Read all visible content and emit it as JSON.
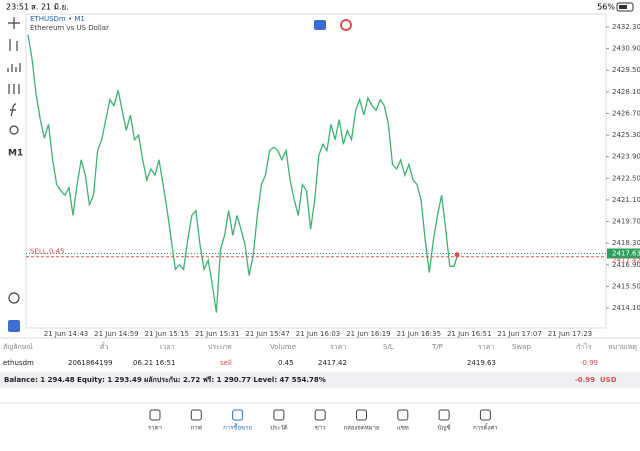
{
  "status_bar": {
    "time": "23:51",
    "date": "ส. 21 มิ.ย.",
    "battery": "56%"
  },
  "toolbar": {
    "timeframe": "M1"
  },
  "chart_data": {
    "type": "line",
    "title": "ETHUSDm • M1",
    "subtitle": "Ethereum vs US Dollar",
    "x_tick_labels": [
      "21 Jun 14:43",
      "21 Jun 14:59",
      "21 Jun 15:15",
      "21 Jun 15:31",
      "21 Jun 15:47",
      "21 Jun 16:03",
      "21 Jun 16:19",
      "21 Jun 16:35",
      "21 Jun 16:51",
      "21 Jun 17:07",
      "21 Jun 17:23"
    ],
    "series": [
      {
        "color": "#3cb371",
        "values": [
          2431.8,
          2430.2,
          2427.9,
          2426.3,
          2425.1,
          2426.0,
          2423.7,
          2422.1,
          2421.7,
          2421.4,
          2421.9,
          2420.1,
          2422.1,
          2423.7,
          2422.7,
          2420.8,
          2421.4,
          2424.3,
          2425.0,
          2426.3,
          2427.6,
          2427.2,
          2428.2,
          2426.9,
          2425.6,
          2426.6,
          2425.0,
          2425.3,
          2423.7,
          2422.4,
          2423.1,
          2422.7,
          2423.7,
          2422.1,
          2420.4,
          2418.5,
          2416.6,
          2416.9,
          2416.6,
          2418.5,
          2420.1,
          2420.4,
          2418.2,
          2416.6,
          2417.2,
          2415.6,
          2413.8,
          2417.9,
          2418.8,
          2420.4,
          2418.8,
          2420.1,
          2419.2,
          2418.2,
          2416.2,
          2417.5,
          2420.1,
          2422.1,
          2422.7,
          2424.3,
          2424.5,
          2424.3,
          2423.7,
          2424.3,
          2422.4,
          2421.1,
          2420.1,
          2422.1,
          2421.7,
          2419.2,
          2421.1,
          2424.0,
          2424.7,
          2424.3,
          2426.0,
          2425.0,
          2426.3,
          2424.7,
          2425.6,
          2425.0,
          2426.9,
          2427.6,
          2426.6,
          2427.7,
          2427.2,
          2426.9,
          2427.6,
          2427.2,
          2426.0,
          2423.4,
          2423.1,
          2423.7,
          2422.7,
          2423.4,
          2422.4,
          2422.1,
          2421.1,
          2418.5,
          2416.4,
          2418.5,
          2420.1,
          2421.4,
          2419.2,
          2416.8,
          2416.8,
          2417.6
        ]
      }
    ],
    "ylim": [
      2414.1,
      2432.3
    ],
    "yticks": [
      {
        "value": 2432.3,
        "label": "2432.30"
      },
      {
        "value": 2430.9,
        "label": "2430.90"
      },
      {
        "value": 2429.5,
        "label": "2429.50"
      },
      {
        "value": 2428.1,
        "label": "2428.10"
      },
      {
        "value": 2426.7,
        "label": "2426.70"
      },
      {
        "value": 2425.3,
        "label": "2425.30"
      },
      {
        "value": 2423.9,
        "label": "2423.90"
      },
      {
        "value": 2422.5,
        "label": "2422.50"
      },
      {
        "value": 2421.1,
        "label": "2421.10"
      },
      {
        "value": 2419.7,
        "label": "2419.70"
      },
      {
        "value": 2418.3,
        "label": "2418.30"
      },
      {
        "value": 2416.9,
        "label": "2416.90"
      },
      {
        "value": 2415.5,
        "label": "2415.50"
      },
      {
        "value": 2414.1,
        "label": "2414.10"
      }
    ],
    "price_line": {
      "value": 2417.63,
      "color": "#2e9e5e"
    },
    "order_line": {
      "text": "SELL 0.45",
      "value": 2417.42,
      "color": "#e05050"
    }
  },
  "table": {
    "headers": [
      "สัญลักษณ์",
      "ตั๋ว",
      "เวลา",
      "ประเภท",
      "Volume",
      "ราคา",
      "S/L",
      "T/P",
      "ราคา",
      "Swap",
      "กำไร",
      "หมายเหตุ"
    ],
    "row": {
      "symbol": "ethusdm",
      "ticket": "2061864199",
      "time": "06.21 16:51",
      "type": "sell",
      "volume": "0.45",
      "price": "2417.42",
      "current_price": "2419.63",
      "profit": "-0.99"
    },
    "balance": "Balance: 1 294.48 Equity: 1 293.49 ผลักประกัน: 2.72 ฟรี: 1 290.77 Level: 47 554.78%",
    "total_profit": "-0.99",
    "currency": "USD"
  },
  "tabs": [
    "ราคา",
    "กาฟ",
    "การซื้อขาย",
    "ประวัติ",
    "ข่าว",
    "กล่องจดหมาย",
    "แชท",
    "บัญชี",
    "การตั้งค่า"
  ],
  "active_tab": 2
}
